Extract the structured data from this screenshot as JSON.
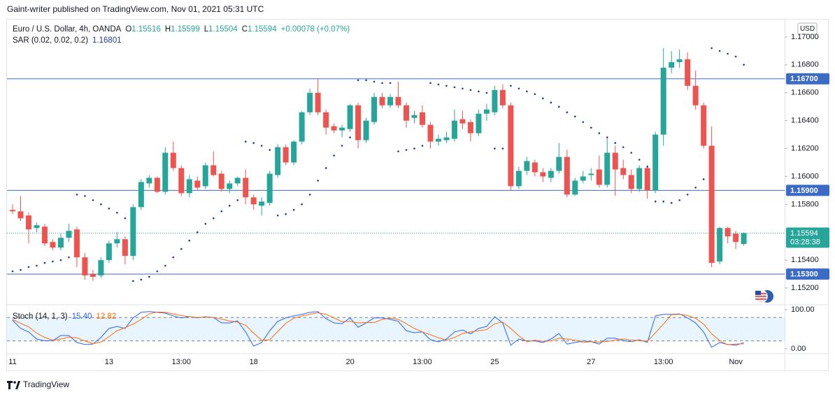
{
  "header": "Gaint-writer published on TradingView.com, Nov 01, 2021 05:31 UTC",
  "footer": "TradingView",
  "chart_data": [
    {
      "type": "candlestick",
      "title": "Euro / U.S. Dollar, 4h, OANDA",
      "ohlc_labels": [
        "O",
        "H",
        "L",
        "C"
      ],
      "change_label": "+0.00078 (+0.07%)",
      "currency": "USD",
      "countdown": "03:28:38",
      "up_color": "#26a69a",
      "down_color": "#ef5350",
      "categories": [
        "11",
        null,
        null,
        null,
        null,
        null,
        null,
        null,
        null,
        null,
        null,
        null,
        "13",
        null,
        null,
        null,
        null,
        null,
        null,
        null,
        null,
        "13:00",
        null,
        null,
        null,
        null,
        null,
        null,
        null,
        null,
        "18",
        null,
        null,
        null,
        null,
        null,
        null,
        null,
        null,
        null,
        null,
        null,
        "20",
        null,
        null,
        null,
        null,
        null,
        null,
        null,
        null,
        "13:00",
        null,
        null,
        null,
        null,
        null,
        null,
        null,
        null,
        "25",
        null,
        null,
        null,
        null,
        null,
        null,
        null,
        null,
        null,
        null,
        null,
        "27",
        null,
        null,
        null,
        null,
        null,
        null,
        null,
        null,
        "13:00",
        null,
        null,
        null,
        null,
        null,
        null,
        null,
        null,
        "Nov",
        null
      ],
      "open": [
        1.1576,
        1.1575,
        1.1572,
        1.1563,
        1.1564,
        1.1553,
        1.1549,
        1.1556,
        1.1562,
        1.1542,
        1.153,
        1.1529,
        1.154,
        1.1552,
        1.1555,
        1.1543,
        1.1578,
        1.1595,
        1.1599,
        1.1589,
        1.1617,
        1.1606,
        1.1588,
        1.1597,
        1.1593,
        1.1608,
        1.1602,
        1.1591,
        1.1595,
        1.1599,
        1.1585,
        1.1579,
        1.1581,
        1.1601,
        1.1621,
        1.161,
        1.1625,
        1.1646,
        1.166,
        1.1646,
        1.1636,
        1.1633,
        1.1634,
        1.1651,
        1.1626,
        1.1639,
        1.1657,
        1.1651,
        1.1657,
        1.1651,
        1.1642,
        1.1646,
        1.1637,
        1.1625,
        1.1626,
        1.1627,
        1.1641,
        1.1639,
        1.1631,
        1.1645,
        1.1646,
        1.1662,
        1.1651,
        1.1593,
        1.1604,
        1.161,
        1.1603,
        1.1599,
        1.1604,
        1.1614,
        1.1587,
        1.1597,
        1.1601,
        1.1605,
        1.1594,
        1.1617,
        1.1606,
        1.1601,
        1.1591,
        1.1606,
        1.159,
        1.163,
        1.1678,
        1.1682,
        1.1684,
        1.1665,
        1.1651,
        1.1622,
        1.1539,
        1.1563,
        1.1559,
        1.15516
      ],
      "high": [
        1.158,
        1.1586,
        1.1574,
        1.1567,
        1.1566,
        1.1555,
        1.1559,
        1.1566,
        1.1564,
        1.1545,
        1.1533,
        1.1542,
        1.1554,
        1.156,
        1.1557,
        1.158,
        1.1598,
        1.1601,
        1.16,
        1.1621,
        1.1625,
        1.1608,
        1.1601,
        1.16,
        1.161,
        1.1618,
        1.1604,
        1.1597,
        1.16,
        1.1605,
        1.1587,
        1.1585,
        1.1604,
        1.1623,
        1.1623,
        1.1626,
        1.1647,
        1.1663,
        1.167,
        1.1648,
        1.1638,
        1.1637,
        1.1652,
        1.1653,
        1.1642,
        1.166,
        1.166,
        1.1659,
        1.1668,
        1.1653,
        1.1647,
        1.1651,
        1.1639,
        1.163,
        1.1632,
        1.1648,
        1.1647,
        1.1641,
        1.1648,
        1.1652,
        1.1665,
        1.1666,
        1.1653,
        1.1607,
        1.1614,
        1.1612,
        1.1606,
        1.1606,
        1.1624,
        1.1619,
        1.1599,
        1.1604,
        1.1606,
        1.1615,
        1.1627,
        1.1622,
        1.1612,
        1.1605,
        1.1608,
        1.1608,
        1.1632,
        1.1692,
        1.169,
        1.1691,
        1.1689,
        1.1676,
        1.1653,
        1.1636,
        1.1564,
        1.1564,
        1.1561,
        1.15599
      ],
      "low": [
        1.1573,
        1.1568,
        1.1552,
        1.156,
        1.155,
        1.1547,
        1.1547,
        1.1553,
        1.1535,
        1.1526,
        1.1525,
        1.1527,
        1.1538,
        1.1549,
        1.1537,
        1.154,
        1.1576,
        1.1592,
        1.1588,
        1.1587,
        1.1604,
        1.1586,
        1.1585,
        1.159,
        1.1591,
        1.16,
        1.1589,
        1.1588,
        1.1593,
        1.158,
        1.1576,
        1.1572,
        1.1579,
        1.1599,
        1.1608,
        1.1608,
        1.1623,
        1.1644,
        1.1644,
        1.163,
        1.1631,
        1.1628,
        1.1632,
        1.162,
        1.1624,
        1.1637,
        1.1649,
        1.1649,
        1.1649,
        1.1635,
        1.1638,
        1.1635,
        1.162,
        1.1622,
        1.1624,
        1.1625,
        1.1634,
        1.1625,
        1.1629,
        1.164,
        1.1644,
        1.1649,
        1.159,
        1.1591,
        1.1601,
        1.16,
        1.1596,
        1.1596,
        1.1602,
        1.1585,
        1.1586,
        1.1595,
        1.1597,
        1.1592,
        1.1592,
        1.1586,
        1.1598,
        1.1588,
        1.1589,
        1.1584,
        1.1588,
        1.1622,
        1.1674,
        1.1678,
        1.1662,
        1.1648,
        1.162,
        1.1535,
        1.1537,
        1.1552,
        1.1548,
        1.15504
      ],
      "close": [
        1.1575,
        1.157,
        1.1562,
        1.1565,
        1.1552,
        1.1549,
        1.1556,
        1.1561,
        1.1542,
        1.1529,
        1.1528,
        1.154,
        1.1552,
        1.1555,
        1.1543,
        1.1578,
        1.1596,
        1.1599,
        1.1589,
        1.1617,
        1.1606,
        1.1588,
        1.1598,
        1.1592,
        1.1608,
        1.1601,
        1.1591,
        1.1595,
        1.1599,
        1.1585,
        1.158,
        1.1582,
        1.1602,
        1.1621,
        1.161,
        1.1625,
        1.1646,
        1.166,
        1.1646,
        1.1635,
        1.1633,
        1.1635,
        1.1651,
        1.1626,
        1.164,
        1.1657,
        1.1651,
        1.1657,
        1.1651,
        1.164,
        1.1644,
        1.1637,
        1.1625,
        1.1627,
        1.1628,
        1.164,
        1.1638,
        1.1631,
        1.1645,
        1.1648,
        1.1662,
        1.1651,
        1.1593,
        1.1604,
        1.1611,
        1.1603,
        1.16,
        1.1604,
        1.1614,
        1.1587,
        1.1597,
        1.16,
        1.1602,
        1.1594,
        1.1617,
        1.1605,
        1.1601,
        1.1591,
        1.1606,
        1.159,
        1.163,
        1.1678,
        1.1682,
        1.1684,
        1.1665,
        1.1651,
        1.1622,
        1.1538,
        1.1563,
        1.1557,
        1.1553,
        1.15594
      ],
      "ylim": [
        1.15085,
        1.17125
      ],
      "yticks": [
        {
          "value": 1.152,
          "label": "1.15200"
        },
        {
          "value": 1.154,
          "label": "1.15400"
        },
        {
          "value": 1.158,
          "label": "1.15800"
        },
        {
          "value": 1.16,
          "label": "1.16000"
        },
        {
          "value": 1.162,
          "label": "1.16200"
        },
        {
          "value": 1.164,
          "label": "1.16400"
        },
        {
          "value": 1.166,
          "label": "1.16600"
        },
        {
          "value": 1.168,
          "label": "1.16800"
        },
        {
          "value": 1.17,
          "label": "1.17000"
        }
      ],
      "hlines": [
        {
          "value": 1.167,
          "label": "1.16700"
        },
        {
          "value": 1.159,
          "label": "1.15900"
        },
        {
          "value": 1.153,
          "label": "1.15300"
        }
      ],
      "hline_color": "#3b6bc4",
      "sar": {
        "name": "SAR (0.02, 0.02, 0.2)",
        "color": "#1e3a8a",
        "values": [
          1.1532,
          1.1533,
          1.1535,
          1.1536,
          1.1538,
          1.1539,
          1.154,
          1.1542,
          1.1587,
          1.1586,
          1.1583,
          1.158,
          1.1577,
          1.1574,
          1.157,
          1.1525,
          1.1526,
          1.1528,
          1.1532,
          1.1536,
          1.1542,
          1.1548,
          1.1554,
          1.156,
          1.1566,
          1.157,
          1.1575,
          1.1579,
          1.1583,
          1.1625,
          1.1624,
          1.1622,
          1.1619,
          1.1572,
          1.1573,
          1.1576,
          1.158,
          1.1587,
          1.1597,
          1.1606,
          1.1615,
          1.1622,
          1.1628,
          1.1669,
          1.1669,
          1.1668,
          1.1667,
          1.1667,
          1.1618,
          1.1619,
          1.162,
          1.1622,
          1.1667,
          1.1666,
          1.1665,
          1.1664,
          1.1663,
          1.1662,
          1.1661,
          1.166,
          1.162,
          1.162,
          1.1665,
          1.1663,
          1.1661,
          1.1659,
          1.1656,
          1.1653,
          1.165,
          1.1646,
          1.1643,
          1.1639,
          1.1635,
          1.1631,
          1.1628,
          1.1624,
          1.1621,
          1.1617,
          1.1612,
          1.1607,
          1.1582,
          1.1582,
          1.1581,
          1.1583,
          1.1587,
          1.1592,
          1.1598,
          1.1692,
          1.169,
          1.1688,
          1.1686,
          1.16801
        ]
      }
    },
    {
      "type": "line",
      "title": "Stoch (14, 1, 3)",
      "ylim": [
        -10.7,
        110.7
      ],
      "yticks": [
        {
          "value": 0,
          "label": "0.00"
        },
        {
          "value": 100,
          "label": "100.00"
        }
      ],
      "bands": [
        20,
        80
      ],
      "series": [
        {
          "color": "#2962ff",
          "last_label": "15.40",
          "values": [
            73,
            52,
            43,
            25,
            20,
            21,
            34,
            34,
            16,
            11,
            12,
            29,
            52,
            57,
            52,
            79,
            93,
            95,
            93,
            91,
            84,
            79,
            82,
            79,
            82,
            80,
            66,
            66,
            71,
            43,
            7,
            16,
            46,
            70,
            79,
            84,
            88,
            93,
            95,
            77,
            66,
            64,
            79,
            55,
            66,
            79,
            79,
            75,
            70,
            46,
            41,
            43,
            23,
            18,
            25,
            43,
            48,
            38,
            52,
            57,
            82,
            66,
            9,
            25,
            20,
            20,
            16,
            25,
            39,
            12,
            16,
            20,
            18,
            12,
            27,
            27,
            21,
            18,
            23,
            16,
            84,
            88,
            88,
            89,
            79,
            66,
            43,
            4,
            16,
            11,
            9,
            15.4
          ]
        },
        {
          "color": "#ff6d00",
          "last_label": "12.82",
          "values": [
            75,
            65,
            56,
            40,
            29,
            22,
            25,
            30,
            28,
            20,
            13,
            17,
            31,
            46,
            54,
            63,
            75,
            89,
            94,
            93,
            89,
            85,
            82,
            80,
            81,
            80,
            76,
            71,
            68,
            60,
            40,
            22,
            23,
            44,
            65,
            78,
            84,
            88,
            92,
            88,
            79,
            69,
            70,
            66,
            67,
            67,
            75,
            78,
            75,
            64,
            52,
            43,
            36,
            28,
            22,
            29,
            39,
            43,
            46,
            49,
            64,
            68,
            52,
            33,
            18,
            22,
            19,
            20,
            27,
            25,
            22,
            16,
            18,
            17,
            19,
            22,
            25,
            22,
            21,
            19,
            41,
            63,
            87,
            88,
            85,
            78,
            63,
            38,
            21,
            10,
            12,
            12.82
          ]
        }
      ]
    }
  ]
}
